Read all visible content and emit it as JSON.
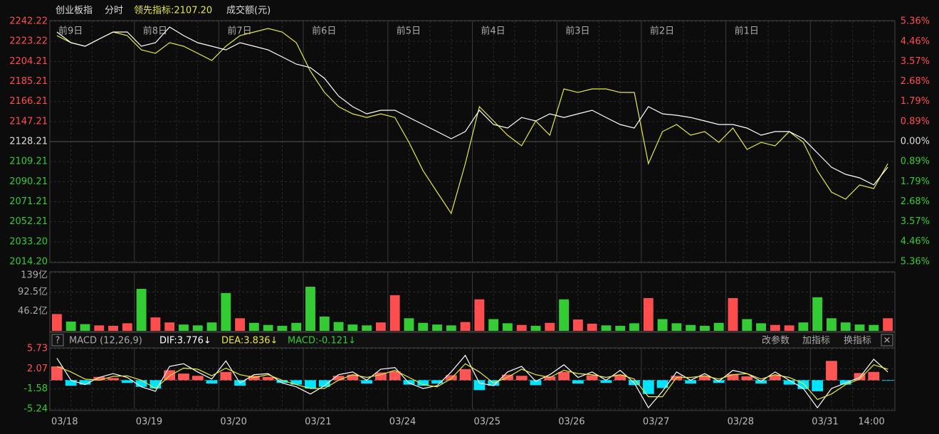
{
  "header": {
    "name": "创业板指",
    "mode": "分时",
    "lead": "领先指标:2107.20",
    "volume_unit": "成交额(元)"
  },
  "macd_header": {
    "help": "?",
    "title": "MACD (12,26,9)",
    "dif": "DIF:3.776↓",
    "dea": "DEA:3.836↓",
    "macd": "MACD:-0.121↓",
    "buttons": [
      "改参数",
      "加指标",
      "换指标",
      "✕"
    ]
  },
  "x_tick_labels": [
    "03/18",
    "03/19",
    "03/20",
    "03/21",
    "03/24",
    "03/25",
    "03/26",
    "03/27",
    "03/28",
    "03/31",
    "14:00"
  ],
  "session_labels": [
    "前9日",
    "前8日",
    "前7日",
    "前6日",
    "前5日",
    "前4日",
    "前3日",
    "前2日",
    "前1日"
  ],
  "chart_data": [
    {
      "type": "line",
      "up_color": "#ff4d4d",
      "down_color": "#33cc33",
      "ylim": [
        2014.2,
        2242.22
      ],
      "yticks": [
        2242.22,
        2223.22,
        2204.21,
        2185.21,
        2166.21,
        2147.21,
        2128.21,
        2109.21,
        2090.21,
        2071.21,
        2052.21,
        {
          "value": 2033.2,
          "label": "2033.20"
        },
        {
          "value": 2014.2,
          "label": "2014.20"
        }
      ],
      "y2lim": [
        -5.36,
        5.36
      ],
      "y2ticks": [
        {
          "value": 5.36,
          "label": "5.36%"
        },
        {
          "value": 4.46,
          "label": "4.46%"
        },
        {
          "value": 3.57,
          "label": "3.57%"
        },
        {
          "value": 2.68,
          "label": "2.68%"
        },
        {
          "value": 1.79,
          "label": "1.79%"
        },
        {
          "value": 0.89,
          "label": "0.89%"
        },
        {
          "value": 0,
          "label": "0.00%"
        },
        {
          "value": -0.89,
          "label": "0.89%"
        },
        {
          "value": -1.79,
          "label": "1.79%"
        },
        {
          "value": -2.68,
          "label": "2.68%"
        },
        {
          "value": -3.57,
          "label": "3.57%"
        },
        {
          "value": -4.46,
          "label": "4.46%"
        },
        {
          "value": -5.36,
          "label": "5.36%"
        }
      ],
      "series": [
        {
          "color": "#ffffff",
          "values": [
            2232.1,
            2222.0,
            2218.6,
            2225.4,
            2232.1,
            2232.1,
            2218.6,
            2222.0,
            2236.8,
            2228.7,
            2222.0,
            2218.6,
            2215.2,
            2222.0,
            2218.6,
            2215.2,
            2208.5,
            2201.7,
            2198.4,
            2188.2,
            2171.4,
            2161.3,
            2154.5,
            2157.9,
            2157.9,
            2151.1,
            2144.4,
            2137.7,
            2130.9,
            2137.7,
            2157.9,
            2144.4,
            2141.0,
            2151.1,
            2147.8,
            2154.5,
            2151.1,
            2154.5,
            2157.9,
            2151.1,
            2144.4,
            2141.0,
            2161.3,
            2154.5,
            2153.2,
            2151.1,
            2147.8,
            2144.4,
            2144.4,
            2141.0,
            2134.3,
            2137.7,
            2137.7,
            2130.9,
            2117.4,
            2103.9,
            2097.2,
            2093.8,
            2087.1,
            2103.9
          ]
        },
        {
          "color": "#e8e83a",
          "values": [
            2228.7,
            2222.0,
            2218.6,
            2225.4,
            2232.1,
            2228.7,
            2215.2,
            2211.9,
            2222.0,
            2218.6,
            2211.9,
            2205.1,
            2218.6,
            2228.7,
            2232.1,
            2235.5,
            2232.1,
            2222.0,
            2195.0,
            2174.8,
            2161.3,
            2154.5,
            2151.1,
            2154.5,
            2151.1,
            2127.5,
            2100.6,
            2080.3,
            2060.1,
            2107.3,
            2161.3,
            2147.8,
            2134.3,
            2124.2,
            2147.8,
            2134.3,
            2178.1,
            2174.8,
            2178.1,
            2178.1,
            2174.8,
            2174.8,
            2107.3,
            2137.7,
            2144.4,
            2134.3,
            2137.7,
            2127.5,
            2141.0,
            2120.8,
            2127.5,
            2124.2,
            2137.7,
            2127.5,
            2100.6,
            2080.3,
            2073.6,
            2087.1,
            2083.7,
            2107.3
          ]
        }
      ]
    },
    {
      "type": "bar",
      "ylim": [
        0,
        139
      ],
      "yticks": [
        {
          "value": 139,
          "label": "139亿"
        },
        {
          "value": 92.5,
          "label": "92.5亿"
        },
        {
          "value": 46.2,
          "label": "46.2亿"
        }
      ],
      "values": [
        40,
        22,
        16,
        13,
        12,
        18,
        100,
        32,
        20,
        15,
        13,
        20,
        90,
        30,
        19,
        14,
        12,
        19,
        105,
        34,
        21,
        15,
        13,
        20,
        85,
        30,
        19,
        15,
        13,
        21,
        75,
        28,
        18,
        14,
        12,
        19,
        75,
        27,
        17,
        13,
        12,
        18,
        78,
        28,
        18,
        14,
        12,
        19,
        78,
        28,
        18,
        14,
        13,
        20,
        80,
        30,
        20,
        15,
        14,
        30
      ]
    },
    {
      "type": "macd",
      "up_color": "#ff5555",
      "down_color": "#00e5ff",
      "ylim": [
        -5.24,
        5.73
      ],
      "yticks": [
        5.73,
        2.07,
        -1.58,
        -5.24
      ],
      "hist": [
        2.5,
        -1,
        -0.8,
        0.6,
        0.4,
        -0.5,
        -1.2,
        -1.5,
        1.8,
        1.2,
        0.8,
        -0.6,
        1.5,
        -1,
        0.8,
        0.6,
        -0.5,
        -0.8,
        -1.5,
        -1.2,
        0.8,
        1,
        -0.6,
        1.4,
        1.6,
        -0.8,
        -1,
        -0.6,
        0.9,
        2,
        -1.8,
        -1,
        1,
        0.8,
        -0.9,
        0.7,
        1.5,
        -0.6,
        0.9,
        -0.5,
        1,
        -0.9,
        -2.5,
        -1.4,
        0.8,
        -0.6,
        0.7,
        -0.5,
        1.1,
        0.7,
        -0.6,
        0.9,
        -0.8,
        -1.6,
        -2,
        3.5,
        -0.8,
        1.3,
        1.5,
        -0.1
      ],
      "series": [
        {
          "color": "#ffffff",
          "values": [
            4,
            0,
            -0.8,
            0.5,
            1.2,
            0.5,
            -1.2,
            -2,
            2.5,
            3,
            1.5,
            0.2,
            3.5,
            -0.5,
            1,
            1.2,
            -0.5,
            -1.2,
            -2.5,
            -1,
            1,
            1.5,
            0,
            2,
            2.3,
            -0.5,
            -1.5,
            -1,
            1.5,
            4.5,
            -0.5,
            -1,
            1.5,
            2.5,
            -0.2,
            1,
            2.8,
            0.5,
            1.5,
            0,
            1.8,
            -0.5,
            -5,
            -2,
            1.5,
            0,
            1.2,
            -0.2,
            1.8,
            1.2,
            -0.2,
            1.5,
            0,
            -1.5,
            -5,
            -1.5,
            -0.5,
            0.5,
            3.8,
            1.5
          ]
        },
        {
          "color": "#e8e83a",
          "values": [
            2.5,
            1.5,
            0.2,
            0,
            0.7,
            0.8,
            0,
            -1.5,
            0.8,
            2.2,
            2,
            0.8,
            2.2,
            1,
            0.5,
            1,
            0,
            -0.8,
            -1.5,
            -1.5,
            0,
            1,
            0.5,
            1,
            1.8,
            0.5,
            -0.8,
            -1.2,
            0.3,
            3,
            1.5,
            -0.5,
            0.5,
            2,
            1,
            0.5,
            1.8,
            1.2,
            1,
            0.5,
            1,
            0.2,
            -3,
            -3,
            0.5,
            0.5,
            0.8,
            0.2,
            1,
            1.2,
            0.2,
            1,
            0.5,
            -0.6,
            -3.5,
            -2.5,
            -0.8,
            0.2,
            2.8,
            2
          ]
        }
      ]
    }
  ]
}
